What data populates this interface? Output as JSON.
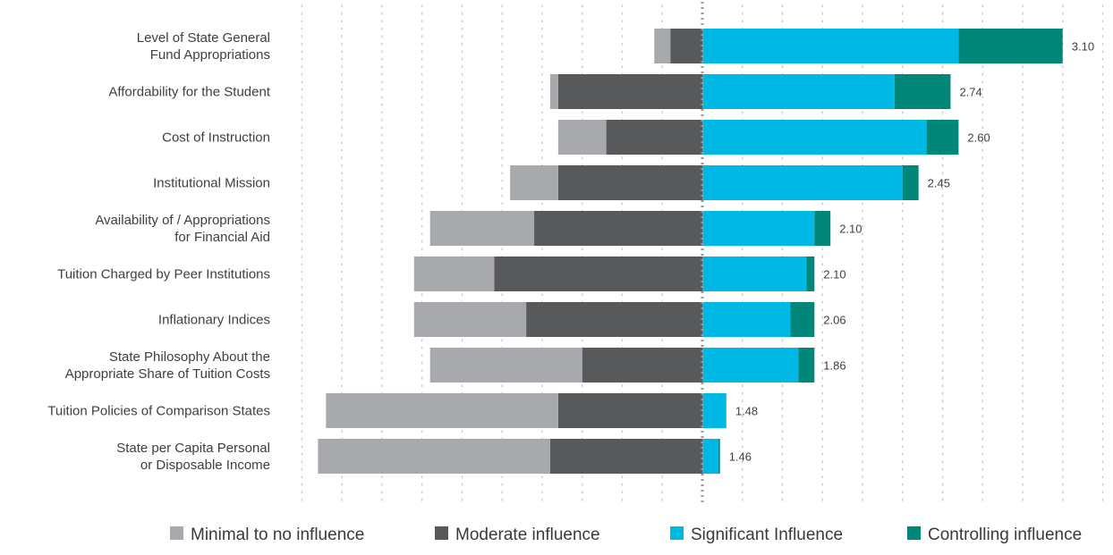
{
  "chart_data": {
    "type": "bar",
    "orientation": "horizontal",
    "stacking": "diverging",
    "grid": true,
    "legend_position": "bottom",
    "categories": [
      [
        "Level of State General",
        "Fund Appropriations"
      ],
      [
        "Affordability for the Student"
      ],
      [
        "Cost of Instruction"
      ],
      [
        "Institutional Mission"
      ],
      [
        "Availability of / Appropriations",
        "for Financial Aid"
      ],
      [
        "Tuition Charged by Peer Institutions"
      ],
      [
        "Inflationary Indices"
      ],
      [
        "State Philosophy About the",
        "Appropriate Share of Tuition Costs"
      ],
      [
        "Tuition Policies of Comparison States"
      ],
      [
        "State per Capita Personal",
        "or Disposable Income"
      ]
    ],
    "series": [
      {
        "name": "Minimal to no influence",
        "color": "#a7a9ac",
        "side": "left",
        "values": [
          2,
          1,
          6,
          6,
          13,
          10,
          14,
          19,
          29,
          29
        ]
      },
      {
        "name": "Moderate influence",
        "color": "#58595b",
        "side": "left",
        "values": [
          4,
          18,
          12,
          18,
          21,
          26,
          22,
          15,
          18,
          19
        ]
      },
      {
        "name": "Significant Influence",
        "color": "#00b8e4",
        "side": "right",
        "values": [
          32,
          24,
          28,
          25,
          14,
          13,
          11,
          12,
          3,
          2
        ]
      },
      {
        "name": "Controlling influence",
        "color": "#00877a",
        "side": "right",
        "values": [
          13,
          7,
          4,
          2,
          2,
          1,
          3,
          2,
          0,
          0.2
        ]
      }
    ],
    "scores": [
      "3.10",
      "2.74",
      "2.60",
      "2.45",
      "2.10",
      "2.10",
      "2.06",
      "1.86",
      "1.48",
      "1.46"
    ],
    "xlim": [
      -50,
      50
    ],
    "grid_step": 5,
    "colors": {
      "grid": "#c9c9c9",
      "center_line": "#9a9a9a"
    }
  }
}
